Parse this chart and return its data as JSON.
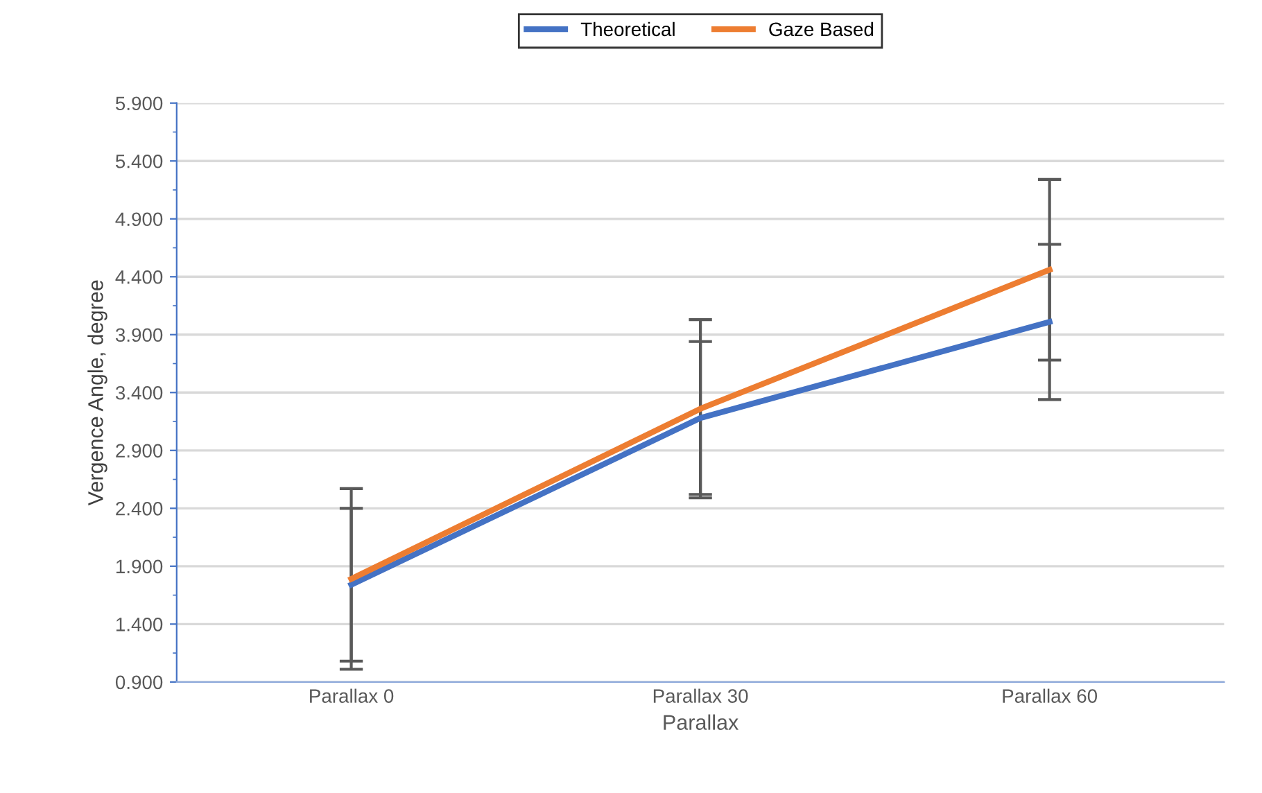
{
  "chart_data": {
    "type": "line",
    "xlabel": "Parallax",
    "ylabel": "Vergence Angle, degree",
    "categories": [
      "Parallax 0",
      "Parallax 30",
      "Parallax 60"
    ],
    "series": [
      {
        "name": "Theoretical",
        "color": "#4472c4",
        "values": [
          1.74,
          3.18,
          4.01
        ],
        "errors": [
          0.66,
          0.66,
          0.67
        ]
      },
      {
        "name": "Gaze Based",
        "color": "#ed7d31",
        "values": [
          1.79,
          3.26,
          4.46
        ],
        "errors": [
          0.78,
          0.77,
          0.78
        ]
      }
    ],
    "ylim": [
      0.9,
      5.9
    ],
    "yticks": [
      {
        "value": 0.9,
        "label": "0.900"
      },
      {
        "value": 1.4,
        "label": "1.400"
      },
      {
        "value": 1.9,
        "label": "1.900"
      },
      {
        "value": 2.4,
        "label": "2.400"
      },
      {
        "value": 2.9,
        "label": "2.900"
      },
      {
        "value": 3.4,
        "label": "3.400"
      },
      {
        "value": 3.9,
        "label": "3.900"
      },
      {
        "value": 4.4,
        "label": "4.400"
      },
      {
        "value": 4.9,
        "label": "4.900"
      },
      {
        "value": 5.4,
        "label": "5.400"
      },
      {
        "value": 5.9,
        "label": "5.900"
      }
    ],
    "grid": "y",
    "legend": "top",
    "marker": "none",
    "line_style": "solid"
  }
}
